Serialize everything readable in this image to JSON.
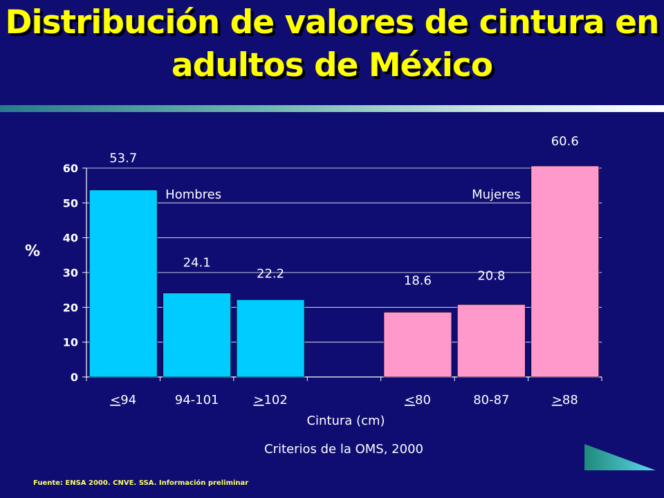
{
  "slide": {
    "title": "Distribución de valores de cintura en adultos de México",
    "source": "Fuente: ENSA 2000. CNVE. SSA. Información preliminar"
  },
  "colors": {
    "background": "#0f0d72",
    "title": "#ffff00",
    "men": "#00ccff",
    "women": "#ff99cc",
    "source": "#ffff66"
  },
  "chart_data": {
    "type": "bar",
    "title": "",
    "xlabel": "Cintura (cm)",
    "ylabel": "%",
    "subtitle": "Criterios de la OMS, 2000",
    "ylim": [
      0,
      60
    ],
    "yticks": [
      0,
      10,
      20,
      30,
      40,
      50,
      60
    ],
    "grid": true,
    "groups": [
      {
        "name": "Hombres",
        "color": "#00ccff",
        "bars": [
          {
            "prefix": "<",
            "label": "94",
            "value": 53.7,
            "value_label": "53.7"
          },
          {
            "prefix": "",
            "label": "94-101",
            "value": 24.1,
            "value_label": "24.1"
          },
          {
            "prefix": ">",
            "label": "102",
            "value": 22.2,
            "value_label": "22.2"
          }
        ]
      },
      {
        "name": "Mujeres",
        "color": "#ff99cc",
        "bars": [
          {
            "prefix": "<",
            "label": "80",
            "value": 18.6,
            "value_label": "18.6"
          },
          {
            "prefix": "",
            "label": "80-87",
            "value": 20.8,
            "value_label": "20.8"
          },
          {
            "prefix": ">",
            "label": "88",
            "value": 60.6,
            "value_label": "60.6"
          }
        ]
      }
    ]
  }
}
